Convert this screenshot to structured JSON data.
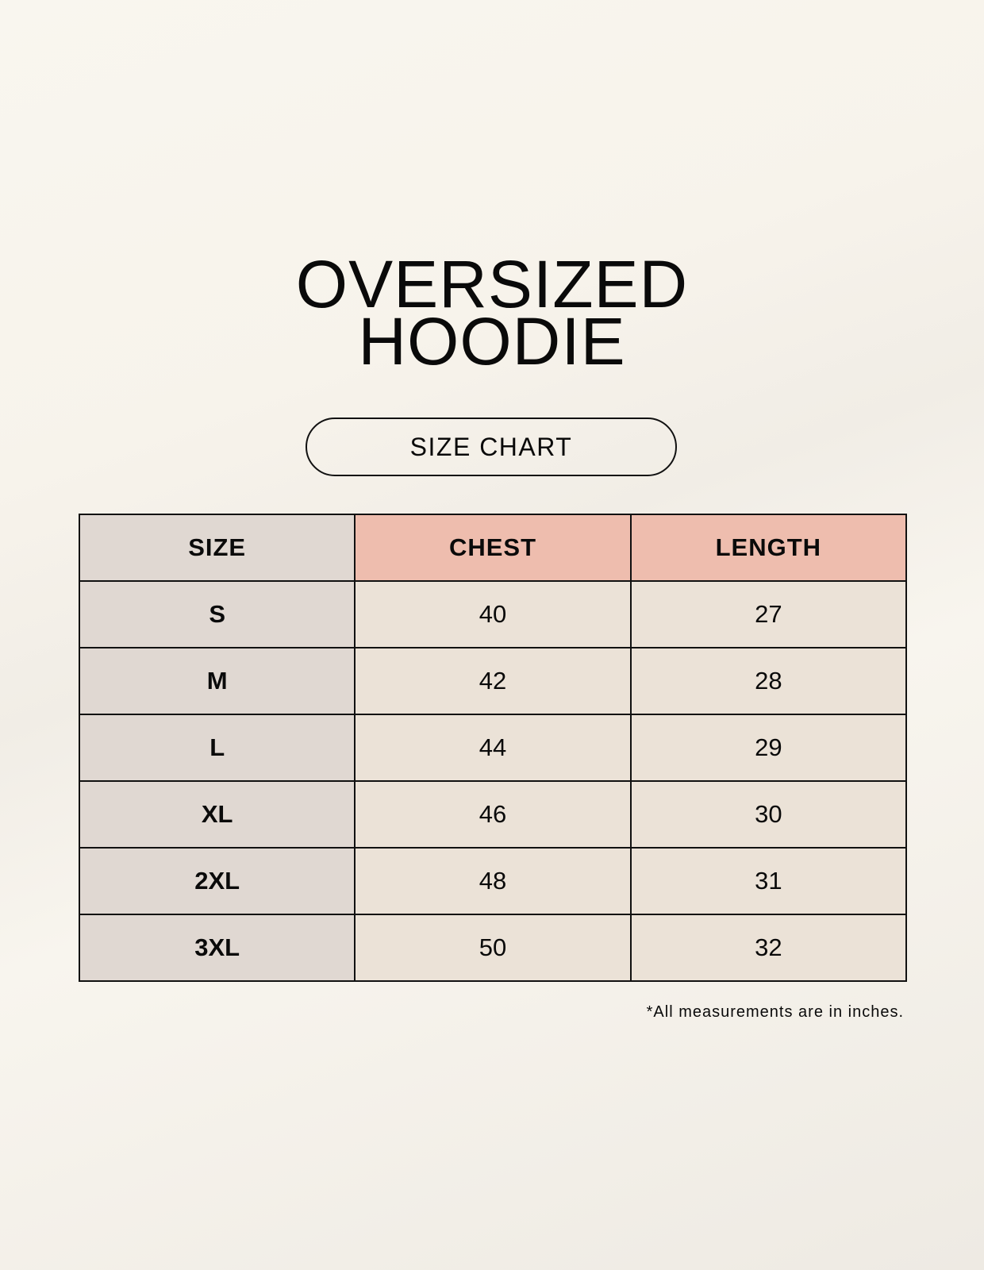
{
  "title": {
    "line1": "OVERSIZED",
    "line2": "HOODIE"
  },
  "subtitle": "SIZE CHART",
  "colors": {
    "size_column": "#e0d8d2",
    "header_accent": "#eebdae",
    "value_cells": "#ebe2d7"
  },
  "table": {
    "headers": [
      "SIZE",
      "CHEST",
      "LENGTH"
    ],
    "rows": [
      [
        "S",
        "40",
        "27"
      ],
      [
        "M",
        "42",
        "28"
      ],
      [
        "L",
        "44",
        "29"
      ],
      [
        "XL",
        "46",
        "30"
      ],
      [
        "2XL",
        "48",
        "31"
      ],
      [
        "3XL",
        "50",
        "32"
      ]
    ]
  },
  "footnote": "*All measurements are in inches."
}
